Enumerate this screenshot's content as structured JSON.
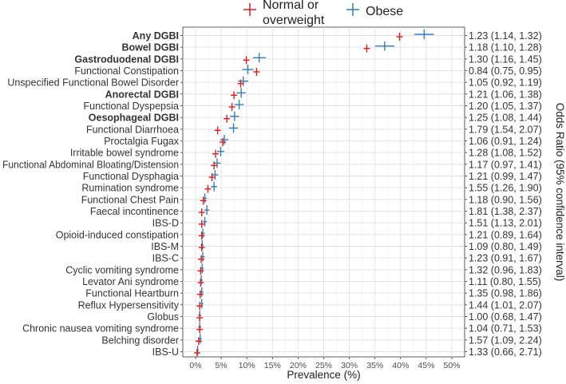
{
  "chart_data": {
    "type": "scatter",
    "xlabel": "Prevalence (%)",
    "right_axis_label": "Odds Ratio (95% confidence interval)",
    "xlim": [
      0,
      50
    ],
    "x_ticks": [
      "0%",
      "5%",
      "10%",
      "15%",
      "20%",
      "25%",
      "30%",
      "35%",
      "40%",
      "45%",
      "50%"
    ],
    "grid": true,
    "legend_position": "top",
    "legend": [
      {
        "name": "Normal or overweight",
        "color": "#e41a1c"
      },
      {
        "name": "Obese",
        "color": "#377eb8"
      }
    ],
    "categories": [
      {
        "label": "Any DGBI",
        "bold": true,
        "normal": 39.8,
        "normal_ci": [
          39.4,
          40.3
        ],
        "obese": 44.6,
        "obese_ci": [
          42.7,
          46.5
        ],
        "or": "1.23 (1.14, 1.32)"
      },
      {
        "label": "Bowel DGBI",
        "bold": true,
        "normal": 33.4,
        "normal_ci": [
          33.0,
          33.8
        ],
        "obese": 36.9,
        "obese_ci": [
          35.0,
          38.8
        ],
        "or": "1.18 (1.10, 1.28)"
      },
      {
        "label": "Gastroduodenal DGBI",
        "bold": true,
        "normal": 9.9,
        "normal_ci": [
          9.7,
          10.1
        ],
        "obese": 12.4,
        "obese_ci": [
          11.2,
          13.7
        ],
        "or": "1.30 (1.16, 1.45)"
      },
      {
        "label": "Functional Constipation",
        "bold": false,
        "normal": 11.9,
        "normal_ci": [
          11.6,
          12.2
        ],
        "obese": 10.2,
        "obese_ci": [
          9.1,
          11.3
        ],
        "or": "0.84 (0.75, 0.95)"
      },
      {
        "label": "Unspecified Functional Bowel Disorder",
        "bold": false,
        "normal": 8.8,
        "normal_ci": [
          8.6,
          9.0
        ],
        "obese": 9.3,
        "obese_ci": [
          8.3,
          10.3
        ],
        "or": "1.05 (0.92, 1.19)"
      },
      {
        "label": "Anorectal DGBI",
        "bold": true,
        "normal": 7.5,
        "normal_ci": [
          7.3,
          7.7
        ],
        "obese": 8.9,
        "obese_ci": [
          8.0,
          9.8
        ],
        "or": "1.21 (1.06, 1.38)"
      },
      {
        "label": "Functional Dyspepsia",
        "bold": false,
        "normal": 7.1,
        "normal_ci": [
          6.9,
          7.3
        ],
        "obese": 8.5,
        "obese_ci": [
          7.6,
          9.4
        ],
        "or": "1.20 (1.05, 1.37)"
      },
      {
        "label": "Oesophageal DGBI",
        "bold": true,
        "normal": 6.1,
        "normal_ci": [
          5.9,
          6.3
        ],
        "obese": 7.6,
        "obese_ci": [
          6.7,
          8.5
        ],
        "or": "1.25 (1.08, 1.44)"
      },
      {
        "label": "Functional Diarrhoea",
        "bold": false,
        "normal": 4.3,
        "normal_ci": [
          4.1,
          4.5
        ],
        "obese": 7.4,
        "obese_ci": [
          6.5,
          8.3
        ],
        "or": "1.79 (1.54, 2.07)"
      },
      {
        "label": "Proctalgia Fugax",
        "bold": false,
        "normal": 5.3,
        "normal_ci": [
          5.1,
          5.5
        ],
        "obese": 5.6,
        "obese_ci": [
          4.8,
          6.4
        ],
        "or": "1.06 (0.91, 1.24)"
      },
      {
        "label": "Irritable bowel syndrome",
        "bold": false,
        "normal": 3.9,
        "normal_ci": [
          3.7,
          4.1
        ],
        "obese": 4.9,
        "obese_ci": [
          4.2,
          5.6
        ],
        "or": "1.28 (1.08, 1.52)"
      },
      {
        "label": "Functional Abdominal Bloating/Distension",
        "bold": false,
        "normal": 3.6,
        "normal_ci": [
          3.4,
          3.8
        ],
        "obese": 4.2,
        "obese_ci": [
          3.5,
          4.9
        ],
        "or": "1.17 (0.97, 1.41)"
      },
      {
        "label": "Functional Dysphagia",
        "bold": false,
        "normal": 3.2,
        "normal_ci": [
          3.0,
          3.4
        ],
        "obese": 3.8,
        "obese_ci": [
          3.2,
          4.4
        ],
        "or": "1.21 (0.99, 1.47)"
      },
      {
        "label": "Rumination syndrome",
        "bold": false,
        "normal": 2.4,
        "normal_ci": [
          2.2,
          2.6
        ],
        "obese": 3.6,
        "obese_ci": [
          3.0,
          4.2
        ],
        "or": "1.55 (1.26, 1.90)"
      },
      {
        "label": "Functional Chest Pain",
        "bold": false,
        "normal": 1.5,
        "normal_ci": [
          1.4,
          1.6
        ],
        "obese": 1.8,
        "obese_ci": [
          1.4,
          2.2
        ],
        "or": "1.18 (0.90, 1.56)"
      },
      {
        "label": "Faecal incontinence",
        "bold": false,
        "normal": 1.2,
        "normal_ci": [
          1.1,
          1.3
        ],
        "obese": 2.2,
        "obese_ci": [
          1.7,
          2.7
        ],
        "or": "1.81 (1.38, 2.37)"
      },
      {
        "label": "IBS-D",
        "bold": false,
        "normal": 1.2,
        "normal_ci": [
          1.1,
          1.3
        ],
        "obese": 1.8,
        "obese_ci": [
          1.4,
          2.2
        ],
        "or": "1.51 (1.13, 2.01)"
      },
      {
        "label": "Opioid-induced constipation",
        "bold": false,
        "normal": 1.2,
        "normal_ci": [
          1.1,
          1.3
        ],
        "obese": 1.4,
        "obese_ci": [
          1.0,
          1.8
        ],
        "or": "1.21 (0.89, 1.64)"
      },
      {
        "label": "IBS-M",
        "bold": false,
        "normal": 1.2,
        "normal_ci": [
          1.1,
          1.3
        ],
        "obese": 1.3,
        "obese_ci": [
          1.0,
          1.6
        ],
        "or": "1.09 (0.80, 1.49)"
      },
      {
        "label": "IBS-C",
        "bold": false,
        "normal": 1.1,
        "normal_ci": [
          1.0,
          1.2
        ],
        "obese": 1.4,
        "obese_ci": [
          1.0,
          1.8
        ],
        "or": "1.23 (0.91, 1.67)"
      },
      {
        "label": "Cyclic vomiting syndrome",
        "bold": false,
        "normal": 1.0,
        "normal_ci": [
          0.9,
          1.1
        ],
        "obese": 1.3,
        "obese_ci": [
          1.0,
          1.6
        ],
        "or": "1.32 (0.96, 1.83)"
      },
      {
        "label": "Levator Ani syndrome",
        "bold": false,
        "normal": 1.0,
        "normal_ci": [
          0.9,
          1.1
        ],
        "obese": 1.1,
        "obese_ci": [
          0.8,
          1.4
        ],
        "or": "1.11 (0.80, 1.55)"
      },
      {
        "label": "Functional Heartburn",
        "bold": false,
        "normal": 0.9,
        "normal_ci": [
          0.8,
          1.0
        ],
        "obese": 1.2,
        "obese_ci": [
          0.9,
          1.5
        ],
        "or": "1.35 (0.98, 1.86)"
      },
      {
        "label": "Reflux Hypersensitivity",
        "bold": false,
        "normal": 0.8,
        "normal_ci": [
          0.7,
          0.9
        ],
        "obese": 1.2,
        "obese_ci": [
          0.9,
          1.5
        ],
        "or": "1.44 (1.01, 2.07)"
      },
      {
        "label": "Globus",
        "bold": false,
        "normal": 0.8,
        "normal_ci": [
          0.7,
          0.9
        ],
        "obese": 0.8,
        "obese_ci": [
          0.5,
          1.1
        ],
        "or": "1.00 (0.68, 1.47)"
      },
      {
        "label": "Chronic nausea vomiting syndrome",
        "bold": false,
        "normal": 0.8,
        "normal_ci": [
          0.7,
          0.9
        ],
        "obese": 0.8,
        "obese_ci": [
          0.5,
          1.1
        ],
        "or": "1.04 (0.71, 1.53)"
      },
      {
        "label": "Belching disorder",
        "bold": false,
        "normal": 0.6,
        "normal_ci": [
          0.5,
          0.7
        ],
        "obese": 0.9,
        "obese_ci": [
          0.6,
          1.2
        ],
        "or": "1.57 (1.09, 2.24)"
      },
      {
        "label": "IBS-U",
        "bold": false,
        "normal": 0.3,
        "normal_ci": [
          0.25,
          0.35
        ],
        "obese": 0.4,
        "obese_ci": [
          0.2,
          0.6
        ],
        "or": "1.33 (0.66, 2.71)"
      }
    ]
  }
}
